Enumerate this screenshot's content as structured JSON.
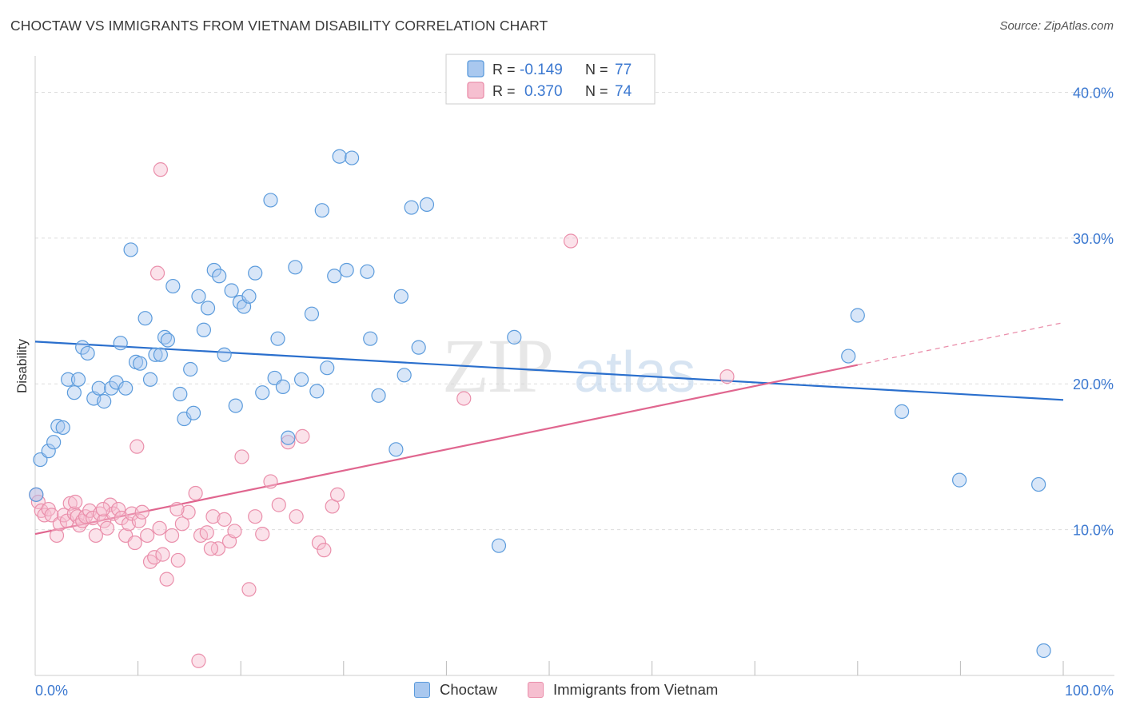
{
  "title": "CHOCTAW VS IMMIGRANTS FROM VIETNAM DISABILITY CORRELATION CHART",
  "source": "Source: ZipAtlas.com",
  "watermark": {
    "zip": "ZIP",
    "atlas": "atlas"
  },
  "colors": {
    "choctaw": "#5b9bdc",
    "choctaw_fill": "#a9c8ef",
    "choctaw_line": "#2a6fcd",
    "vietnam": "#ea8fab",
    "vietnam_fill": "#f6bfd0",
    "vietnam_line": "#e0668f",
    "axis_text": "#3b78d0",
    "grid": "#dddddd"
  },
  "legend_top": {
    "rows": [
      {
        "r_label": "R =",
        "r_value": "-0.149",
        "n_label": "N =",
        "n_value": "77"
      },
      {
        "r_label": "R =",
        "r_value": "0.370",
        "n_label": "N =",
        "n_value": "74"
      }
    ]
  },
  "legend_bottom": {
    "items": [
      "Choctaw",
      "Immigrants from Vietnam"
    ]
  },
  "chart_data": {
    "type": "scatter",
    "title": "CHOCTAW VS IMMIGRANTS FROM VIETNAM DISABILITY CORRELATION CHART",
    "xlabel": "",
    "ylabel": "Disability",
    "xlim": [
      0,
      100
    ],
    "ylim": [
      0,
      42
    ],
    "x_tick_labels": [
      "0.0%",
      "100.0%"
    ],
    "y_ticks": [
      10,
      20,
      30,
      40
    ],
    "y_tick_labels": [
      "10.0%",
      "20.0%",
      "30.0%",
      "40.0%"
    ],
    "grid": true,
    "legend_position": "top-center",
    "series": [
      {
        "name": "Choctaw",
        "trend": {
          "x": [
            0,
            100
          ],
          "y": [
            22.9,
            18.9
          ]
        },
        "points": [
          [
            0.1,
            12.4
          ],
          [
            0.5,
            14.8
          ],
          [
            1.3,
            15.4
          ],
          [
            1.8,
            16.0
          ],
          [
            2.2,
            17.1
          ],
          [
            2.7,
            17.0
          ],
          [
            3.2,
            20.3
          ],
          [
            3.8,
            19.4
          ],
          [
            4.2,
            20.3
          ],
          [
            4.6,
            22.5
          ],
          [
            5.1,
            22.1
          ],
          [
            5.7,
            19.0
          ],
          [
            6.2,
            19.7
          ],
          [
            6.7,
            18.8
          ],
          [
            7.4,
            19.7
          ],
          [
            7.9,
            20.1
          ],
          [
            8.3,
            22.8
          ],
          [
            8.8,
            19.7
          ],
          [
            9.3,
            29.2
          ],
          [
            9.8,
            21.5
          ],
          [
            10.2,
            21.4
          ],
          [
            10.7,
            24.5
          ],
          [
            11.2,
            20.3
          ],
          [
            11.7,
            22.0
          ],
          [
            12.2,
            22.0
          ],
          [
            12.6,
            23.2
          ],
          [
            12.9,
            23.0
          ],
          [
            13.4,
            26.7
          ],
          [
            14.1,
            19.3
          ],
          [
            14.5,
            17.6
          ],
          [
            15.1,
            21.0
          ],
          [
            15.4,
            18.0
          ],
          [
            15.9,
            26.0
          ],
          [
            16.4,
            23.7
          ],
          [
            16.8,
            25.2
          ],
          [
            17.4,
            27.8
          ],
          [
            17.9,
            27.4
          ],
          [
            18.4,
            22.0
          ],
          [
            19.1,
            26.4
          ],
          [
            19.5,
            18.5
          ],
          [
            19.9,
            25.6
          ],
          [
            20.3,
            25.3
          ],
          [
            20.8,
            26.0
          ],
          [
            21.4,
            27.6
          ],
          [
            22.1,
            19.4
          ],
          [
            22.9,
            32.6
          ],
          [
            23.3,
            20.4
          ],
          [
            23.6,
            23.1
          ],
          [
            24.1,
            19.8
          ],
          [
            24.6,
            16.3
          ],
          [
            25.3,
            28.0
          ],
          [
            25.9,
            20.3
          ],
          [
            26.9,
            24.8
          ],
          [
            27.4,
            19.5
          ],
          [
            27.9,
            31.9
          ],
          [
            28.4,
            21.1
          ],
          [
            29.1,
            27.4
          ],
          [
            29.6,
            35.6
          ],
          [
            30.3,
            27.8
          ],
          [
            30.8,
            35.5
          ],
          [
            32.3,
            27.7
          ],
          [
            32.6,
            23.1
          ],
          [
            33.4,
            19.2
          ],
          [
            35.1,
            15.5
          ],
          [
            35.6,
            26.0
          ],
          [
            35.9,
            20.6
          ],
          [
            36.6,
            32.1
          ],
          [
            37.3,
            22.5
          ],
          [
            38.1,
            32.3
          ],
          [
            45.1,
            8.9
          ],
          [
            46.6,
            23.2
          ],
          [
            79.1,
            21.9
          ],
          [
            80.0,
            24.7
          ],
          [
            84.3,
            18.1
          ],
          [
            89.9,
            13.4
          ],
          [
            97.6,
            13.1
          ],
          [
            98.1,
            1.7
          ]
        ]
      },
      {
        "name": "Immigrants from Vietnam",
        "trend": {
          "x": [
            0,
            80
          ],
          "y": [
            9.7,
            21.3
          ]
        },
        "trend_dashed": {
          "x": [
            80,
            100
          ],
          "y": [
            21.3,
            24.2
          ]
        },
        "points": [
          [
            0.1,
            12.4
          ],
          [
            0.3,
            11.9
          ],
          [
            0.6,
            11.3
          ],
          [
            0.9,
            11.0
          ],
          [
            1.3,
            11.4
          ],
          [
            1.6,
            11.0
          ],
          [
            2.1,
            9.6
          ],
          [
            2.4,
            10.4
          ],
          [
            2.8,
            11.0
          ],
          [
            3.1,
            10.6
          ],
          [
            3.4,
            11.8
          ],
          [
            3.8,
            11.1
          ],
          [
            4.1,
            10.9
          ],
          [
            4.3,
            10.3
          ],
          [
            4.6,
            10.6
          ],
          [
            4.9,
            10.9
          ],
          [
            5.3,
            11.3
          ],
          [
            5.6,
            10.8
          ],
          [
            5.9,
            9.6
          ],
          [
            6.3,
            11.1
          ],
          [
            6.7,
            10.6
          ],
          [
            7.0,
            10.1
          ],
          [
            7.3,
            11.7
          ],
          [
            7.6,
            11.1
          ],
          [
            8.1,
            11.4
          ],
          [
            8.4,
            10.8
          ],
          [
            8.8,
            9.6
          ],
          [
            9.1,
            10.4
          ],
          [
            9.4,
            11.1
          ],
          [
            9.7,
            9.1
          ],
          [
            10.1,
            10.6
          ],
          [
            10.4,
            11.2
          ],
          [
            10.9,
            9.6
          ],
          [
            11.2,
            7.8
          ],
          [
            11.6,
            8.1
          ],
          [
            12.1,
            10.1
          ],
          [
            12.4,
            8.3
          ],
          [
            12.8,
            6.6
          ],
          [
            13.3,
            9.6
          ],
          [
            13.9,
            7.9
          ],
          [
            14.3,
            10.4
          ],
          [
            14.9,
            11.2
          ],
          [
            15.6,
            12.5
          ],
          [
            16.1,
            9.6
          ],
          [
            16.7,
            9.8
          ],
          [
            17.3,
            10.9
          ],
          [
            17.8,
            8.7
          ],
          [
            18.4,
            10.7
          ],
          [
            18.9,
            9.2
          ],
          [
            19.4,
            9.9
          ],
          [
            20.1,
            15.0
          ],
          [
            20.8,
            5.9
          ],
          [
            21.4,
            10.9
          ],
          [
            22.1,
            9.7
          ],
          [
            22.9,
            13.3
          ],
          [
            23.7,
            11.7
          ],
          [
            24.6,
            16.0
          ],
          [
            25.4,
            10.9
          ],
          [
            26.0,
            16.4
          ],
          [
            27.6,
            9.1
          ],
          [
            28.1,
            8.6
          ],
          [
            28.9,
            11.6
          ],
          [
            29.4,
            12.4
          ],
          [
            41.7,
            19.0
          ],
          [
            12.2,
            34.7
          ],
          [
            11.9,
            27.6
          ],
          [
            9.9,
            15.7
          ],
          [
            52.1,
            29.8
          ],
          [
            67.3,
            20.5
          ],
          [
            15.9,
            1.0
          ],
          [
            3.9,
            11.9
          ],
          [
            6.6,
            11.4
          ],
          [
            13.8,
            11.4
          ],
          [
            17.1,
            8.7
          ]
        ]
      }
    ]
  }
}
